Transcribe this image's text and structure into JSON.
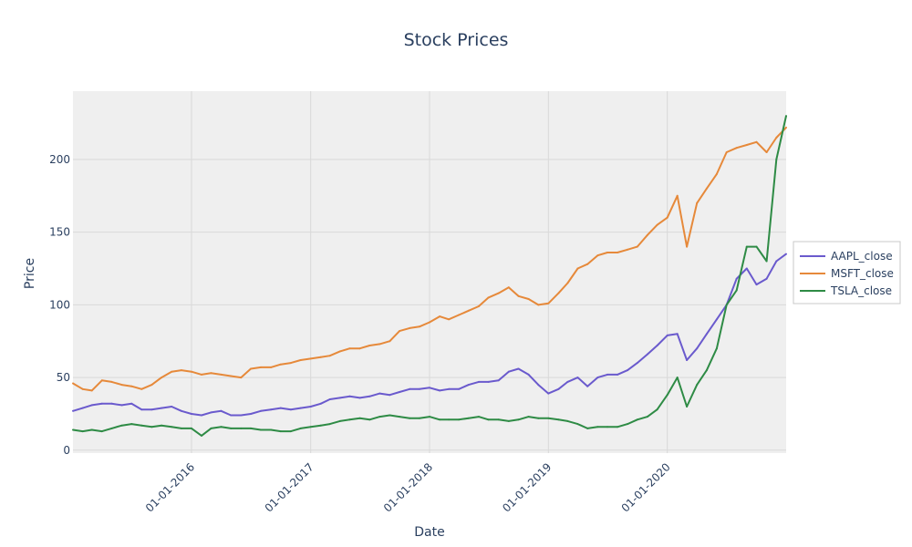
{
  "chart_data": {
    "type": "line",
    "title": "Stock Prices",
    "xlabel": "Date",
    "ylabel": "Price",
    "x_range": [
      "2015-01-02",
      "2020-12-31"
    ],
    "ylim": [
      -2,
      247
    ],
    "x_ticks": [
      {
        "date": "2016-01-01",
        "label": "01-01-2016"
      },
      {
        "date": "2017-01-01",
        "label": "01-01-2017"
      },
      {
        "date": "2018-01-01",
        "label": "01-01-2018"
      },
      {
        "date": "2019-01-01",
        "label": "01-01-2019"
      },
      {
        "date": "2020-01-01",
        "label": "01-01-2020"
      }
    ],
    "y_ticks": [
      0,
      50,
      100,
      150,
      200
    ],
    "grid": true,
    "legend_position": "right",
    "colors": {
      "plot_background": "#efefef",
      "grid": "#d9d9d9",
      "AAPL_close": "#6a5acd",
      "MSFT_close": "#e6893a",
      "TSLA_close": "#2e8b45"
    },
    "series": [
      {
        "name": "AAPL_close",
        "x": [
          "2015-01-02",
          "2015-02-01",
          "2015-03-01",
          "2015-04-01",
          "2015-05-01",
          "2015-06-01",
          "2015-07-01",
          "2015-08-01",
          "2015-09-01",
          "2015-10-01",
          "2015-11-01",
          "2015-12-01",
          "2016-01-01",
          "2016-02-01",
          "2016-03-01",
          "2016-04-01",
          "2016-05-01",
          "2016-06-01",
          "2016-07-01",
          "2016-08-01",
          "2016-09-01",
          "2016-10-01",
          "2016-11-01",
          "2016-12-01",
          "2017-01-01",
          "2017-02-01",
          "2017-03-01",
          "2017-04-01",
          "2017-05-01",
          "2017-06-01",
          "2017-07-01",
          "2017-08-01",
          "2017-09-01",
          "2017-10-01",
          "2017-11-01",
          "2017-12-01",
          "2018-01-01",
          "2018-02-01",
          "2018-03-01",
          "2018-04-01",
          "2018-05-01",
          "2018-06-01",
          "2018-07-01",
          "2018-08-01",
          "2018-09-01",
          "2018-10-01",
          "2018-11-01",
          "2018-12-01",
          "2019-01-01",
          "2019-02-01",
          "2019-03-01",
          "2019-04-01",
          "2019-05-01",
          "2019-06-01",
          "2019-07-01",
          "2019-08-01",
          "2019-09-01",
          "2019-10-01",
          "2019-11-01",
          "2019-12-01",
          "2020-01-01",
          "2020-02-01",
          "2020-03-01",
          "2020-04-01",
          "2020-05-01",
          "2020-06-01",
          "2020-07-01",
          "2020-08-01",
          "2020-09-01",
          "2020-10-01",
          "2020-11-01",
          "2020-12-01",
          "2020-12-31"
        ],
        "values": [
          27,
          29,
          31,
          32,
          32,
          31,
          32,
          28,
          28,
          29,
          30,
          27,
          25,
          24,
          26,
          27,
          24,
          24,
          25,
          27,
          28,
          29,
          28,
          29,
          30,
          32,
          35,
          36,
          37,
          36,
          37,
          39,
          38,
          40,
          42,
          42,
          43,
          41,
          42,
          42,
          45,
          47,
          47,
          48,
          54,
          56,
          52,
          45,
          39,
          42,
          47,
          50,
          44,
          50,
          52,
          52,
          55,
          60,
          66,
          72,
          79,
          80,
          62,
          70,
          80,
          90,
          100,
          118,
          125,
          114,
          118,
          130,
          135
        ]
      },
      {
        "name": "MSFT_close",
        "x": [
          "2015-01-02",
          "2015-02-01",
          "2015-03-01",
          "2015-04-01",
          "2015-05-01",
          "2015-06-01",
          "2015-07-01",
          "2015-08-01",
          "2015-09-01",
          "2015-10-01",
          "2015-11-01",
          "2015-12-01",
          "2016-01-01",
          "2016-02-01",
          "2016-03-01",
          "2016-04-01",
          "2016-05-01",
          "2016-06-01",
          "2016-07-01",
          "2016-08-01",
          "2016-09-01",
          "2016-10-01",
          "2016-11-01",
          "2016-12-01",
          "2017-01-01",
          "2017-02-01",
          "2017-03-01",
          "2017-04-01",
          "2017-05-01",
          "2017-06-01",
          "2017-07-01",
          "2017-08-01",
          "2017-09-01",
          "2017-10-01",
          "2017-11-01",
          "2017-12-01",
          "2018-01-01",
          "2018-02-01",
          "2018-03-01",
          "2018-04-01",
          "2018-05-01",
          "2018-06-01",
          "2018-07-01",
          "2018-08-01",
          "2018-09-01",
          "2018-10-01",
          "2018-11-01",
          "2018-12-01",
          "2019-01-01",
          "2019-02-01",
          "2019-03-01",
          "2019-04-01",
          "2019-05-01",
          "2019-06-01",
          "2019-07-01",
          "2019-08-01",
          "2019-09-01",
          "2019-10-01",
          "2019-11-01",
          "2019-12-01",
          "2020-01-01",
          "2020-02-01",
          "2020-03-01",
          "2020-04-01",
          "2020-05-01",
          "2020-06-01",
          "2020-07-01",
          "2020-08-01",
          "2020-09-01",
          "2020-10-01",
          "2020-11-01",
          "2020-12-01",
          "2020-12-31"
        ],
        "values": [
          46,
          42,
          41,
          48,
          47,
          45,
          44,
          42,
          45,
          50,
          54,
          55,
          54,
          52,
          53,
          52,
          51,
          50,
          56,
          57,
          57,
          59,
          60,
          62,
          63,
          64,
          65,
          68,
          70,
          70,
          72,
          73,
          75,
          82,
          84,
          85,
          88,
          92,
          90,
          93,
          96,
          99,
          105,
          108,
          112,
          106,
          104,
          100,
          101,
          108,
          115,
          125,
          128,
          134,
          136,
          136,
          138,
          140,
          148,
          155,
          160,
          175,
          140,
          170,
          180,
          190,
          205,
          208,
          210,
          212,
          205,
          215,
          222
        ]
      },
      {
        "name": "TSLA_close",
        "x": [
          "2015-01-02",
          "2015-02-01",
          "2015-03-01",
          "2015-04-01",
          "2015-05-01",
          "2015-06-01",
          "2015-07-01",
          "2015-08-01",
          "2015-09-01",
          "2015-10-01",
          "2015-11-01",
          "2015-12-01",
          "2016-01-01",
          "2016-02-01",
          "2016-03-01",
          "2016-04-01",
          "2016-05-01",
          "2016-06-01",
          "2016-07-01",
          "2016-08-01",
          "2016-09-01",
          "2016-10-01",
          "2016-11-01",
          "2016-12-01",
          "2017-01-01",
          "2017-02-01",
          "2017-03-01",
          "2017-04-01",
          "2017-05-01",
          "2017-06-01",
          "2017-07-01",
          "2017-08-01",
          "2017-09-01",
          "2017-10-01",
          "2017-11-01",
          "2017-12-01",
          "2018-01-01",
          "2018-02-01",
          "2018-03-01",
          "2018-04-01",
          "2018-05-01",
          "2018-06-01",
          "2018-07-01",
          "2018-08-01",
          "2018-09-01",
          "2018-10-01",
          "2018-11-01",
          "2018-12-01",
          "2019-01-01",
          "2019-02-01",
          "2019-03-01",
          "2019-04-01",
          "2019-05-01",
          "2019-06-01",
          "2019-07-01",
          "2019-08-01",
          "2019-09-01",
          "2019-10-01",
          "2019-11-01",
          "2019-12-01",
          "2020-01-01",
          "2020-02-01",
          "2020-03-01",
          "2020-04-01",
          "2020-05-01",
          "2020-06-01",
          "2020-07-01",
          "2020-08-01",
          "2020-09-01",
          "2020-10-01",
          "2020-11-01",
          "2020-12-01",
          "2020-12-31"
        ],
        "values": [
          14,
          13,
          14,
          13,
          15,
          17,
          18,
          17,
          16,
          17,
          16,
          15,
          15,
          10,
          15,
          16,
          15,
          15,
          15,
          14,
          14,
          13,
          13,
          15,
          16,
          17,
          18,
          20,
          21,
          22,
          21,
          23,
          24,
          23,
          22,
          22,
          23,
          21,
          21,
          21,
          22,
          23,
          21,
          21,
          20,
          21,
          23,
          22,
          22,
          21,
          20,
          18,
          15,
          16,
          16,
          16,
          18,
          21,
          23,
          28,
          38,
          50,
          30,
          45,
          55,
          70,
          100,
          110,
          140,
          140,
          130,
          200,
          230
        ]
      }
    ]
  }
}
